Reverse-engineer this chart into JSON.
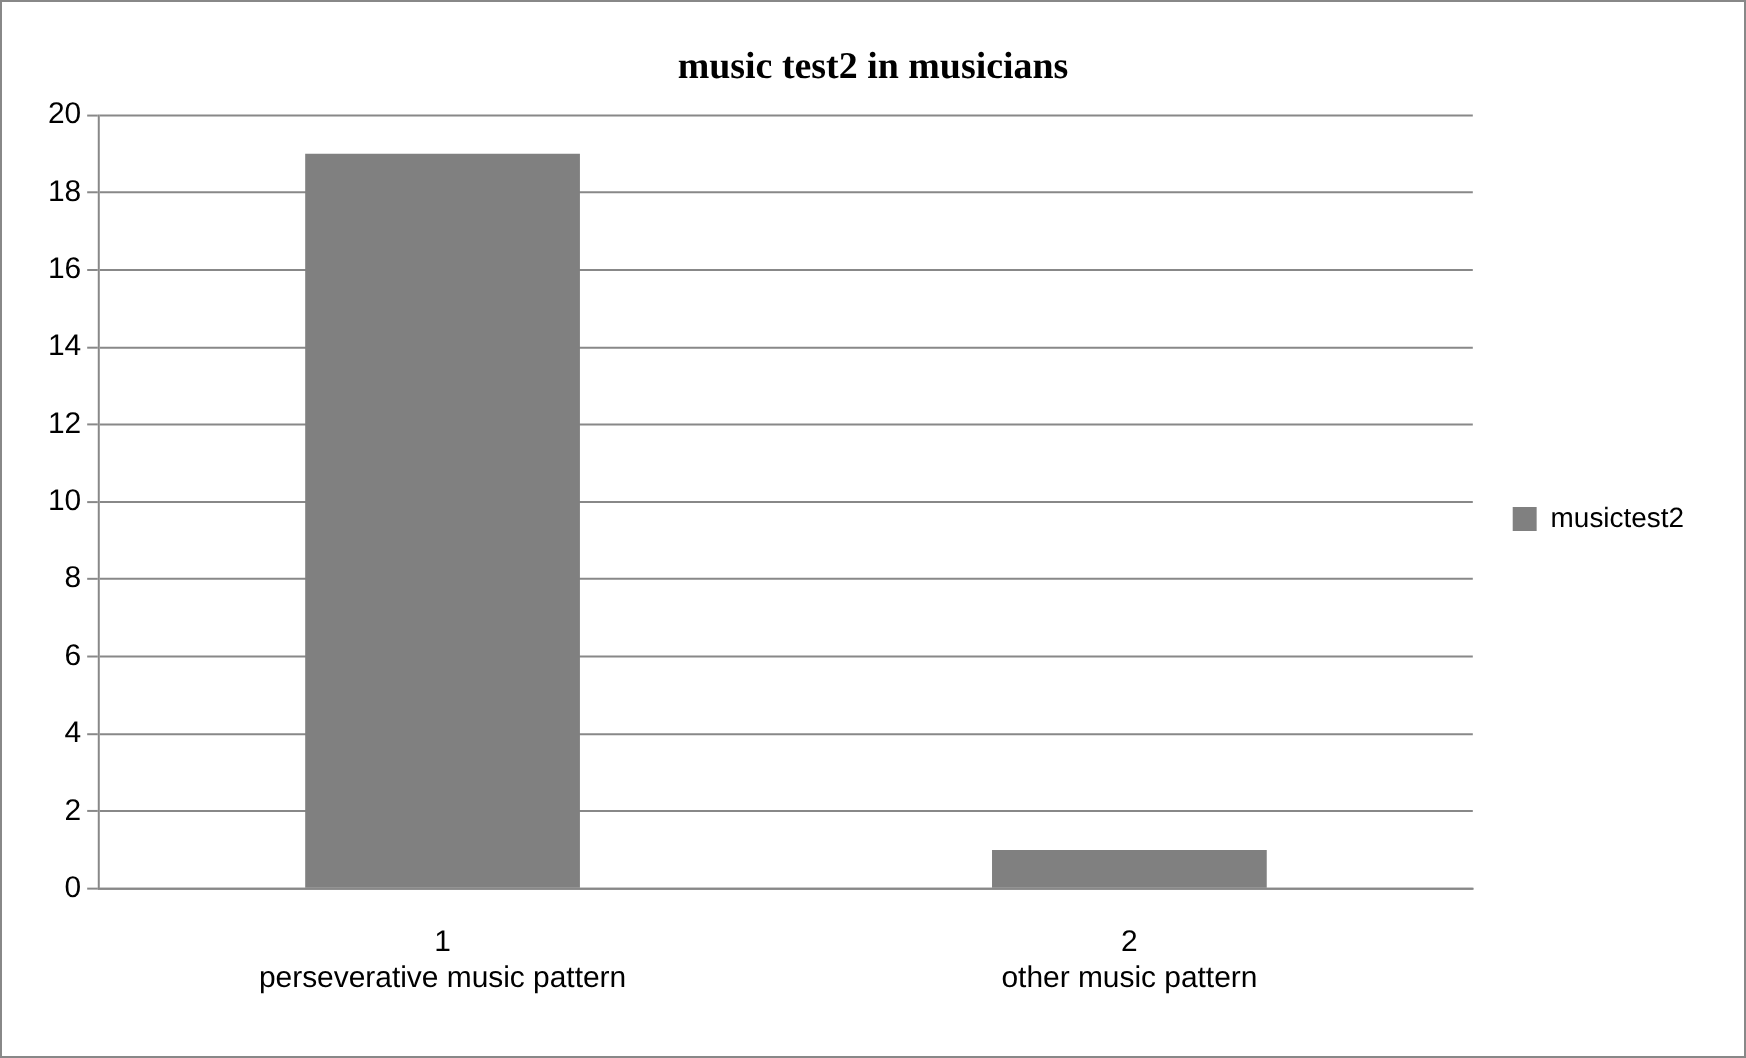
{
  "chart_data": {
    "type": "bar",
    "title": "music test2 in musicians",
    "categories": [
      "1\nperseverative music pattern",
      "2\nother music pattern"
    ],
    "series": [
      {
        "name": "musictest2",
        "color": "#808080",
        "values": [
          19,
          1
        ]
      }
    ],
    "ylim": [
      0,
      20
    ],
    "yticks": [
      0,
      2,
      4,
      6,
      8,
      10,
      12,
      14,
      16,
      18,
      20
    ],
    "grid": "y",
    "legend": "right"
  }
}
